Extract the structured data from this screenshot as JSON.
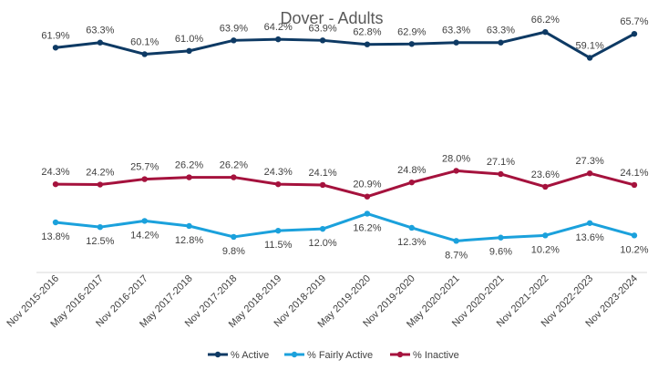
{
  "chart_data": {
    "type": "line",
    "title": "Dover - Adults",
    "xlabel": "",
    "ylabel": "",
    "ylim": [
      0,
      70
    ],
    "grid": false,
    "legend_position": "bottom",
    "categories": [
      "Nov 2015-2016",
      "May 2016-2017",
      "Nov 2016-2017",
      "May 2017-2018",
      "Nov 2017-2018",
      "May 2018-2019",
      "Nov 2018-2019",
      "May 2019-2020",
      "Nov 2019-2020",
      "May 2020-2021",
      "Nov 2020-2021",
      "Nov 2021-2022",
      "Nov 2022-2023",
      "Nov 2023-2024"
    ],
    "series": [
      {
        "name": "% Active",
        "color": "#0e3a64",
        "label_pos": "above",
        "values": [
          61.9,
          63.3,
          60.1,
          61.0,
          63.9,
          64.2,
          63.9,
          62.8,
          62.9,
          63.3,
          63.3,
          66.2,
          59.1,
          65.7
        ],
        "labels": [
          "61.9%",
          "63.3%",
          "60.1%",
          "61.0%",
          "63.9%",
          "64.2%",
          "63.9%",
          "62.8%",
          "62.9%",
          "63.3%",
          "63.3%",
          "66.2%",
          "59.1%",
          "65.7%"
        ]
      },
      {
        "name": "% Fairly Active",
        "color": "#1ba1dc",
        "label_pos": "below",
        "values": [
          13.8,
          12.5,
          14.2,
          12.8,
          9.8,
          11.5,
          12.0,
          16.2,
          12.3,
          8.7,
          9.6,
          10.2,
          13.6,
          10.2
        ],
        "labels": [
          "13.8%",
          "12.5%",
          "14.2%",
          "12.8%",
          "9.8%",
          "11.5%",
          "12.0%",
          "16.2%",
          "12.3%",
          "8.7%",
          "9.6%",
          "10.2%",
          "13.6%",
          "10.2%"
        ]
      },
      {
        "name": "% Inactive",
        "color": "#a5123d",
        "label_pos": "above",
        "values": [
          24.3,
          24.2,
          25.7,
          26.2,
          26.2,
          24.3,
          24.1,
          20.9,
          24.8,
          28.0,
          27.1,
          23.6,
          27.3,
          24.1
        ],
        "labels": [
          "24.3%",
          "24.2%",
          "25.7%",
          "26.2%",
          "26.2%",
          "24.3%",
          "24.1%",
          "20.9%",
          "24.8%",
          "28.0%",
          "27.1%",
          "23.6%",
          "27.3%",
          "24.1%"
        ]
      }
    ]
  }
}
